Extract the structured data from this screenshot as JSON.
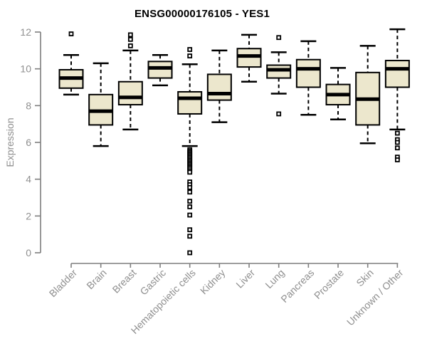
{
  "chart_data": {
    "type": "boxplot",
    "title": "ENSG00000176105 - YES1",
    "ylabel": "Expression",
    "xlabel": "",
    "ylim": [
      0,
      12
    ],
    "yticks": [
      0,
      2,
      4,
      6,
      8,
      10,
      12
    ],
    "grid": false,
    "legend": "none",
    "colors": {
      "box_fill": "#ece7cd",
      "box_stroke": "#000000",
      "median_stroke": "#000000",
      "axis_line": "#7f7f7f",
      "tick_text": "#8f8f8f",
      "outlier_fill": "#ffffff",
      "background": "#ffffff",
      "title_text": "#000000"
    },
    "categories": [
      "Bladder",
      "Brain",
      "Breast",
      "Gastric",
      "Hematopoietic cells",
      "Kidney",
      "Liver",
      "Lung",
      "Pancreas",
      "Prostate",
      "Skin",
      "Unknown / Other"
    ],
    "boxes": [
      {
        "category": "Bladder",
        "whisker_low": 8.6,
        "q1": 8.95,
        "median": 9.5,
        "q3": 9.95,
        "whisker_high": 10.75,
        "outliers": [
          11.9
        ]
      },
      {
        "category": "Brain",
        "whisker_low": 5.8,
        "q1": 6.95,
        "median": 7.7,
        "q3": 8.6,
        "whisker_high": 10.3,
        "outliers": []
      },
      {
        "category": "Breast",
        "whisker_low": 6.7,
        "q1": 8.05,
        "median": 8.45,
        "q3": 9.3,
        "whisker_high": 11.0,
        "outliers": [
          11.85,
          11.6,
          11.25
        ]
      },
      {
        "category": "Gastric",
        "whisker_low": 9.1,
        "q1": 9.5,
        "median": 10.05,
        "q3": 10.4,
        "whisker_high": 10.75,
        "outliers": []
      },
      {
        "category": "Hematopoietic cells",
        "whisker_low": 5.8,
        "q1": 7.55,
        "median": 8.4,
        "q3": 8.75,
        "whisker_high": 10.25,
        "outliers": [
          11.05,
          10.7,
          5.6,
          5.52,
          5.44,
          5.36,
          5.28,
          5.2,
          5.12,
          5.04,
          4.96,
          4.88,
          4.8,
          4.72,
          4.64,
          4.56,
          4.46,
          4.38,
          3.85,
          3.7,
          3.55,
          3.3,
          2.8,
          2.5,
          2.05,
          1.25,
          0.9,
          0.0
        ]
      },
      {
        "category": "Kidney",
        "whisker_low": 7.1,
        "q1": 8.3,
        "median": 8.65,
        "q3": 9.7,
        "whisker_high": 11.0,
        "outliers": []
      },
      {
        "category": "Liver",
        "whisker_low": 9.3,
        "q1": 10.1,
        "median": 10.7,
        "q3": 11.1,
        "whisker_high": 11.85,
        "outliers": []
      },
      {
        "category": "Lung",
        "whisker_low": 8.65,
        "q1": 9.5,
        "median": 9.95,
        "q3": 10.2,
        "whisker_high": 10.9,
        "outliers": [
          11.7,
          7.55
        ]
      },
      {
        "category": "Pancreas",
        "whisker_low": 7.5,
        "q1": 9.0,
        "median": 10.0,
        "q3": 10.5,
        "whisker_high": 11.5,
        "outliers": []
      },
      {
        "category": "Prostate",
        "whisker_low": 7.25,
        "q1": 8.05,
        "median": 8.6,
        "q3": 9.15,
        "whisker_high": 10.05,
        "outliers": []
      },
      {
        "category": "Skin",
        "whisker_low": 5.95,
        "q1": 6.95,
        "median": 8.35,
        "q3": 9.8,
        "whisker_high": 11.25,
        "outliers": []
      },
      {
        "category": "Unknown / Other",
        "whisker_low": 6.7,
        "q1": 9.0,
        "median": 10.0,
        "q3": 10.45,
        "whisker_high": 12.15,
        "outliers": [
          6.5,
          6.15,
          6.0,
          5.7,
          5.2,
          5.05
        ]
      }
    ]
  }
}
